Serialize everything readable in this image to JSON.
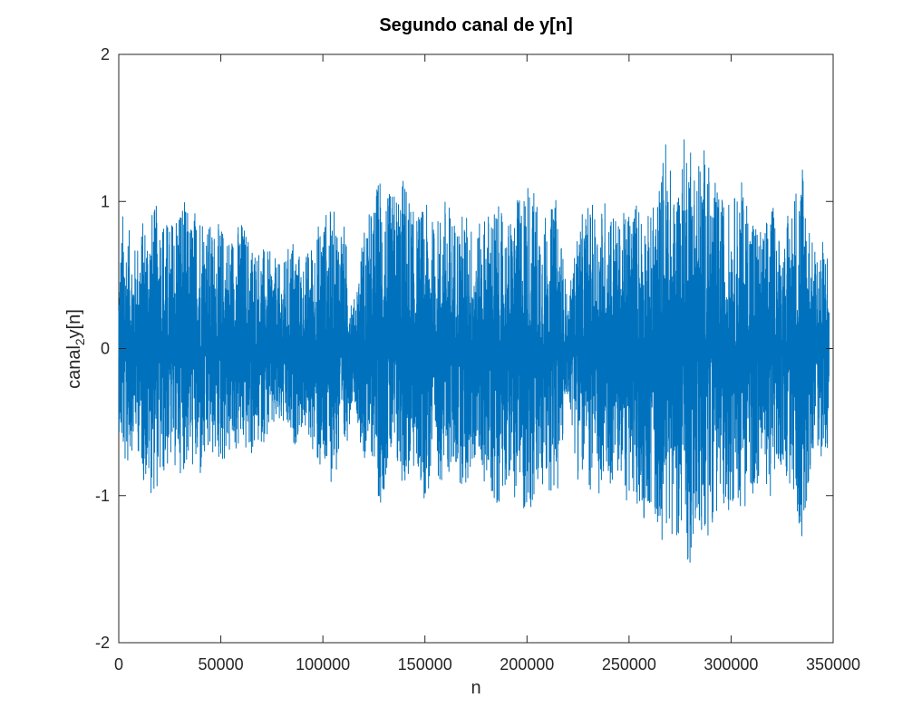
{
  "chart_data": {
    "type": "line",
    "title": "Segundo canal de y[n]",
    "xlabel": "n",
    "ylabel": "canal",
    "ylabel_subscript": "2",
    "ylabel_suffix": "y[n]",
    "xlim": [
      0,
      350000
    ],
    "ylim": [
      -2,
      2
    ],
    "x_ticks": [
      0,
      50000,
      100000,
      150000,
      200000,
      250000,
      300000,
      350000
    ],
    "x_tick_labels": [
      "0",
      "50000",
      "100000",
      "150000",
      "200000",
      "250000",
      "300000",
      "350000"
    ],
    "y_ticks": [
      -2,
      -1,
      0,
      1,
      2
    ],
    "y_tick_labels": [
      "-2",
      "-1",
      "0",
      "1",
      "2"
    ],
    "grid": false,
    "legend": "none",
    "series_color": "#0072BD",
    "n_samples": 348000,
    "envelope": {
      "n": [
        0,
        2000,
        4000,
        8000,
        12000,
        16000,
        20000,
        25000,
        30000,
        35000,
        40000,
        45000,
        50000,
        55000,
        60000,
        65000,
        70000,
        75000,
        80000,
        85000,
        90000,
        95000,
        100000,
        105000,
        110000,
        115000,
        120000,
        125000,
        128000,
        132000,
        136000,
        140000,
        145000,
        150000,
        155000,
        160000,
        165000,
        170000,
        175000,
        180000,
        185000,
        190000,
        195000,
        200000,
        205000,
        210000,
        215000,
        220000,
        225000,
        230000,
        235000,
        240000,
        245000,
        250000,
        255000,
        260000,
        265000,
        268000,
        272000,
        275000,
        279000,
        283000,
        287000,
        290000,
        295000,
        300000,
        305000,
        310000,
        315000,
        320000,
        325000,
        330000,
        335000,
        340000,
        345000,
        348000
      ],
      "max": [
        0.55,
        0.95,
        0.85,
        0.7,
        0.9,
        0.95,
        1.0,
        0.85,
        1.1,
        0.9,
        1.05,
        0.85,
        0.85,
        0.8,
        0.9,
        0.75,
        0.7,
        0.65,
        0.55,
        0.8,
        0.6,
        0.75,
        0.95,
        0.95,
        0.9,
        0.3,
        0.85,
        1.0,
        1.25,
        1.05,
        1.1,
        1.2,
        0.9,
        1.0,
        0.85,
        1.05,
        0.9,
        0.95,
        0.8,
        0.95,
        1.0,
        0.85,
        1.0,
        1.2,
        1.05,
        0.9,
        1.05,
        0.3,
        0.85,
        1.0,
        0.95,
        1.1,
        0.85,
        1.0,
        1.05,
        0.9,
        1.15,
        1.5,
        1.05,
        1.3,
        1.6,
        1.3,
        1.4,
        1.2,
        1.05,
        1.0,
        1.15,
        1.0,
        0.8,
        1.0,
        0.75,
        1.05,
        1.38,
        0.7,
        0.75,
        0.7
      ],
      "min": [
        -0.55,
        -0.8,
        -0.85,
        -0.6,
        -0.9,
        -1.0,
        -0.95,
        -0.8,
        -0.85,
        -0.8,
        -0.95,
        -0.75,
        -0.8,
        -0.75,
        -0.7,
        -0.75,
        -0.65,
        -0.6,
        -0.55,
        -0.7,
        -0.55,
        -0.7,
        -0.95,
        -0.9,
        -0.85,
        -0.3,
        -0.8,
        -0.75,
        -1.12,
        -0.8,
        -0.9,
        -0.95,
        -0.85,
        -1.05,
        -0.9,
        -0.9,
        -0.85,
        -1.0,
        -0.75,
        -0.95,
        -1.1,
        -0.9,
        -1.05,
        -1.15,
        -1.1,
        -0.95,
        -1.05,
        -0.3,
        -0.9,
        -0.95,
        -1.1,
        -0.95,
        -0.9,
        -1.1,
        -1.2,
        -1.1,
        -1.3,
        -1.3,
        -1.25,
        -1.3,
        -1.52,
        -1.3,
        -1.42,
        -1.2,
        -1.1,
        -1.1,
        -1.1,
        -1.05,
        -0.85,
        -1.05,
        -0.8,
        -1.05,
        -1.3,
        -0.7,
        -0.75,
        -0.7
      ]
    }
  }
}
